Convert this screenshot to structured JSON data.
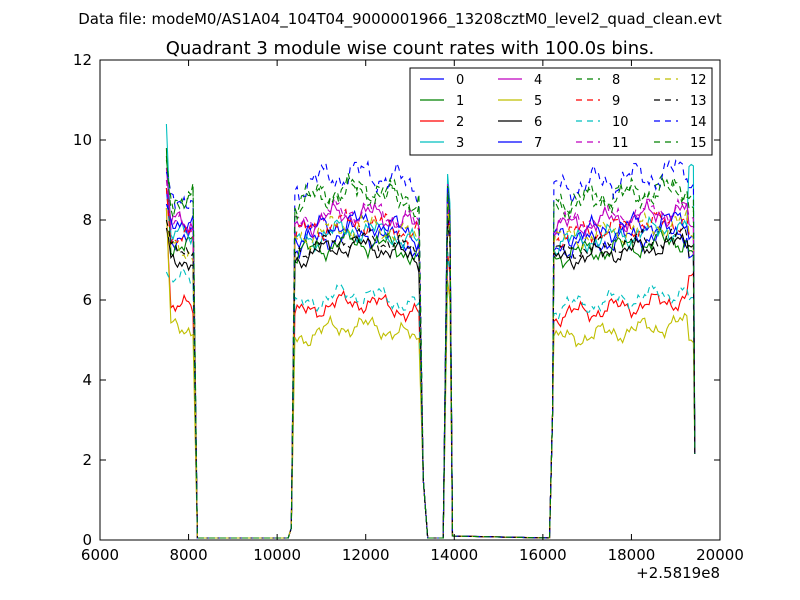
{
  "chart_data": {
    "type": "line",
    "suptitle": "Data file: modeM0/AS1A04_104T04_9000001966_13208cztM0_level2_quad_clean.evt",
    "title": "Quadrant 3 module wise count rates with 100.0s bins.",
    "xlabel": "",
    "ylabel": "",
    "x_offset_label": "+2.5819e8",
    "xlim": [
      6000,
      20000
    ],
    "ylim": [
      0,
      12
    ],
    "x_ticks": [
      6000,
      8000,
      10000,
      12000,
      14000,
      16000,
      18000,
      20000
    ],
    "y_ticks": [
      0,
      2,
      4,
      6,
      8,
      10,
      12
    ],
    "legend_position": "top-right",
    "segments": [
      {
        "name": "seg1",
        "start": 7500,
        "end": 8100
      },
      {
        "name": "seg2",
        "start": 10400,
        "end": 13200
      },
      {
        "name": "seg3",
        "start": 13850,
        "end": 13900
      },
      {
        "name": "seg4",
        "start": 16250,
        "end": 19400
      }
    ],
    "series": [
      {
        "name": "0",
        "color": "#0000ff",
        "dash": false,
        "level1": 7.6,
        "level": 7.3,
        "first": 8.8,
        "endv": 7.1,
        "peak": 9.0,
        "amp": 0.35,
        "phase": 0.3
      },
      {
        "name": "1",
        "color": "#008000",
        "dash": false,
        "level1": 7.3,
        "level": 7.1,
        "first": 9.8,
        "endv": 7.2,
        "peak": 8.6,
        "amp": 0.35,
        "phase": 1.1
      },
      {
        "name": "2",
        "color": "#ff0000",
        "dash": false,
        "level1": 5.8,
        "level": 5.6,
        "first": 8.3,
        "endv": 6.6,
        "peak": 7.2,
        "amp": 0.3,
        "phase": 2.0
      },
      {
        "name": "3",
        "color": "#00bfbf",
        "dash": false,
        "level1": 7.6,
        "level": 7.4,
        "first": 10.4,
        "endv": 9.3,
        "peak": 9.15,
        "amp": 0.35,
        "phase": 2.7
      },
      {
        "name": "4",
        "color": "#bf00bf",
        "dash": false,
        "level1": 7.9,
        "level": 7.8,
        "first": 9.3,
        "endv": 7.8,
        "peak": 8.9,
        "amp": 0.35,
        "phase": 3.4
      },
      {
        "name": "5",
        "color": "#bfbf00",
        "dash": false,
        "level1": 5.3,
        "level": 5.0,
        "first": 8.3,
        "endv": 5.0,
        "peak": 6.5,
        "amp": 0.3,
        "phase": 4.2
      },
      {
        "name": "6",
        "color": "#000000",
        "dash": false,
        "level1": 7.0,
        "level": 7.0,
        "first": 7.8,
        "endv": 7.4,
        "peak": 8.2,
        "amp": 0.3,
        "phase": 5.0
      },
      {
        "name": "7",
        "color": "#0000ff",
        "dash": false,
        "level1": 8.0,
        "level": 7.6,
        "first": 8.4,
        "endv": 7.6,
        "peak": 8.8,
        "amp": 0.35,
        "phase": 5.7
      },
      {
        "name": "8",
        "color": "#008000",
        "dash": true,
        "level1": 8.4,
        "level": 8.4,
        "first": 9.6,
        "endv": 8.3,
        "peak": 8.9,
        "amp": 0.4,
        "phase": 0.8
      },
      {
        "name": "9",
        "color": "#ff0000",
        "dash": true,
        "level1": 7.5,
        "level": 7.6,
        "first": 8.8,
        "endv": 7.6,
        "peak": 8.3,
        "amp": 0.35,
        "phase": 1.6
      },
      {
        "name": "10",
        "color": "#00bfbf",
        "dash": true,
        "level1": 6.5,
        "level": 5.8,
        "first": 6.7,
        "endv": 6.0,
        "peak": 7.2,
        "amp": 0.3,
        "phase": 2.4
      },
      {
        "name": "11",
        "color": "#bf00bf",
        "dash": true,
        "level1": 7.8,
        "level": 7.9,
        "first": 9.0,
        "endv": 8.0,
        "peak": 8.5,
        "amp": 0.35,
        "phase": 3.1
      },
      {
        "name": "12",
        "color": "#bfbf00",
        "dash": true,
        "level1": 7.2,
        "level": 7.5,
        "first": 8.0,
        "endv": 7.6,
        "peak": 8.4,
        "amp": 0.35,
        "phase": 3.9
      },
      {
        "name": "13",
        "color": "#000000",
        "dash": true,
        "level1": 7.3,
        "level": 7.2,
        "first": 8.0,
        "endv": 7.1,
        "peak": 8.0,
        "amp": 0.3,
        "phase": 4.6
      },
      {
        "name": "14",
        "color": "#0000ff",
        "dash": true,
        "level1": 8.6,
        "level": 8.8,
        "first": 9.2,
        "endv": 8.9,
        "peak": 8.8,
        "amp": 0.45,
        "phase": 5.3
      },
      {
        "name": "15",
        "color": "#008000",
        "dash": true,
        "level1": 8.6,
        "level": 8.4,
        "first": 9.5,
        "endv": 8.6,
        "peak": 8.7,
        "amp": 0.4,
        "phase": 6.0
      }
    ]
  }
}
